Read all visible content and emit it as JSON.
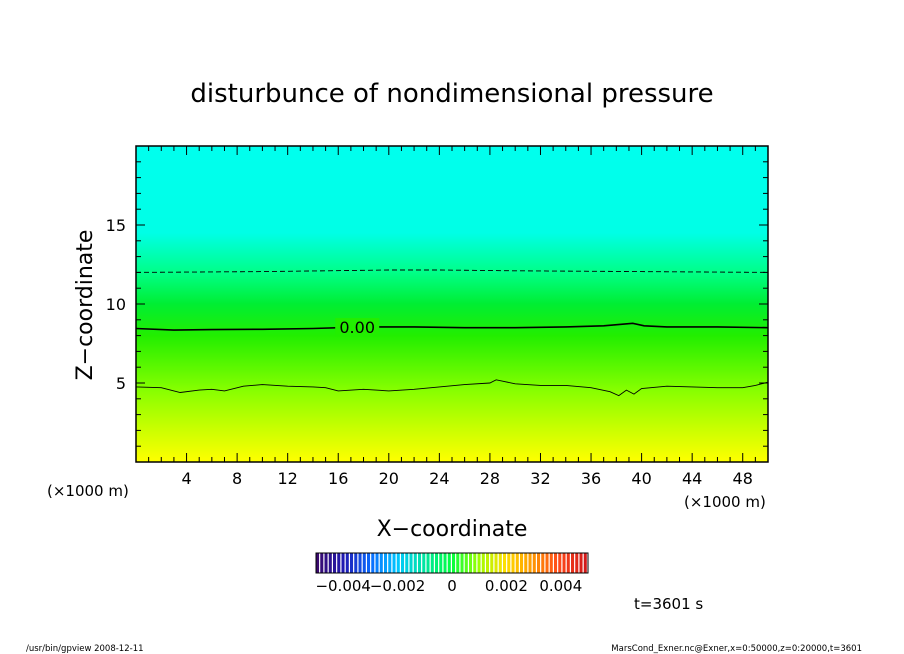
{
  "chart_data": {
    "type": "heatmap",
    "title": "disturbunce of nondimensional pressure",
    "xlabel": "X−coordinate",
    "ylabel": "Z−coordinate",
    "x_unit_label": "(×1000 m)",
    "y_unit_label": "(×1000 m)",
    "xlim": [
      0,
      50
    ],
    "ylim": [
      0,
      20
    ],
    "x_ticks": [
      4,
      8,
      12,
      16,
      20,
      24,
      28,
      32,
      36,
      40,
      44,
      48
    ],
    "y_ticks": [
      5,
      10,
      15
    ],
    "x_minor_step": 1,
    "y_minor_step": 1,
    "field_color_stops": [
      {
        "z": 0,
        "color": "#ffff00"
      },
      {
        "z": 2,
        "color": "#ccff00"
      },
      {
        "z": 4.5,
        "color": "#88ff00"
      },
      {
        "z": 8,
        "color": "#22ee00"
      },
      {
        "z": 10,
        "color": "#00ee33"
      },
      {
        "z": 12,
        "color": "#00ff88"
      },
      {
        "z": 14.5,
        "color": "#00ffe6"
      },
      {
        "z": 20,
        "color": "#00ffee"
      }
    ],
    "contours": [
      {
        "level": "0.00",
        "label": "0.00",
        "label_x": 17.5,
        "style": "solid",
        "x": [
          0,
          3,
          6,
          10,
          14,
          18,
          22,
          26,
          30,
          34,
          37,
          38.5,
          39.3,
          40.2,
          42,
          46,
          50
        ],
        "y": [
          8.45,
          8.35,
          8.38,
          8.4,
          8.45,
          8.55,
          8.55,
          8.5,
          8.5,
          8.55,
          8.62,
          8.72,
          8.78,
          8.62,
          8.55,
          8.55,
          8.5
        ]
      },
      {
        "level": "thin",
        "style": "solid",
        "x": [
          0,
          2,
          3.5,
          5,
          6,
          7,
          8.5,
          10,
          12,
          14,
          15,
          16,
          18,
          20,
          22,
          24,
          26,
          28,
          28.5,
          30,
          32,
          34,
          36,
          37.5,
          38.2,
          38.8,
          39.4,
          40,
          42,
          44,
          46,
          48,
          49,
          50
        ],
        "y": [
          4.75,
          4.7,
          4.4,
          4.55,
          4.6,
          4.5,
          4.8,
          4.9,
          4.8,
          4.75,
          4.7,
          4.5,
          4.6,
          4.5,
          4.6,
          4.75,
          4.9,
          5.0,
          5.2,
          4.95,
          4.85,
          4.85,
          4.7,
          4.45,
          4.2,
          4.55,
          4.3,
          4.65,
          4.8,
          4.75,
          4.7,
          4.7,
          4.85,
          5.05
        ]
      },
      {
        "level": "dashed",
        "style": "dashed",
        "x": [
          0,
          10,
          20,
          24,
          30,
          40,
          50
        ],
        "y": [
          12.0,
          12.05,
          12.15,
          12.15,
          12.1,
          12.05,
          12.0
        ]
      }
    ],
    "colorbar": {
      "tick_labels": [
        "−0.004",
        "−0.002",
        "0",
        "0.002",
        "0.004"
      ],
      "tick_values": [
        -0.004,
        -0.002,
        0,
        0.002,
        0.004
      ],
      "range": [
        -0.005,
        0.005
      ],
      "colors": [
        "#3a0a6e",
        "#1f1ab4",
        "#0a6cff",
        "#00c8ff",
        "#00e6a0",
        "#00ff40",
        "#9cff00",
        "#ffe000",
        "#ff9a00",
        "#ff4a1a",
        "#d21a1a"
      ]
    }
  },
  "annotations": {
    "time": "t=3601 s",
    "footer_left": "/usr/bin/gpview   2008-12-11",
    "footer_right": "MarsCond_Exner.nc@Exner,x=0:50000,z=0:20000,t=3601"
  }
}
